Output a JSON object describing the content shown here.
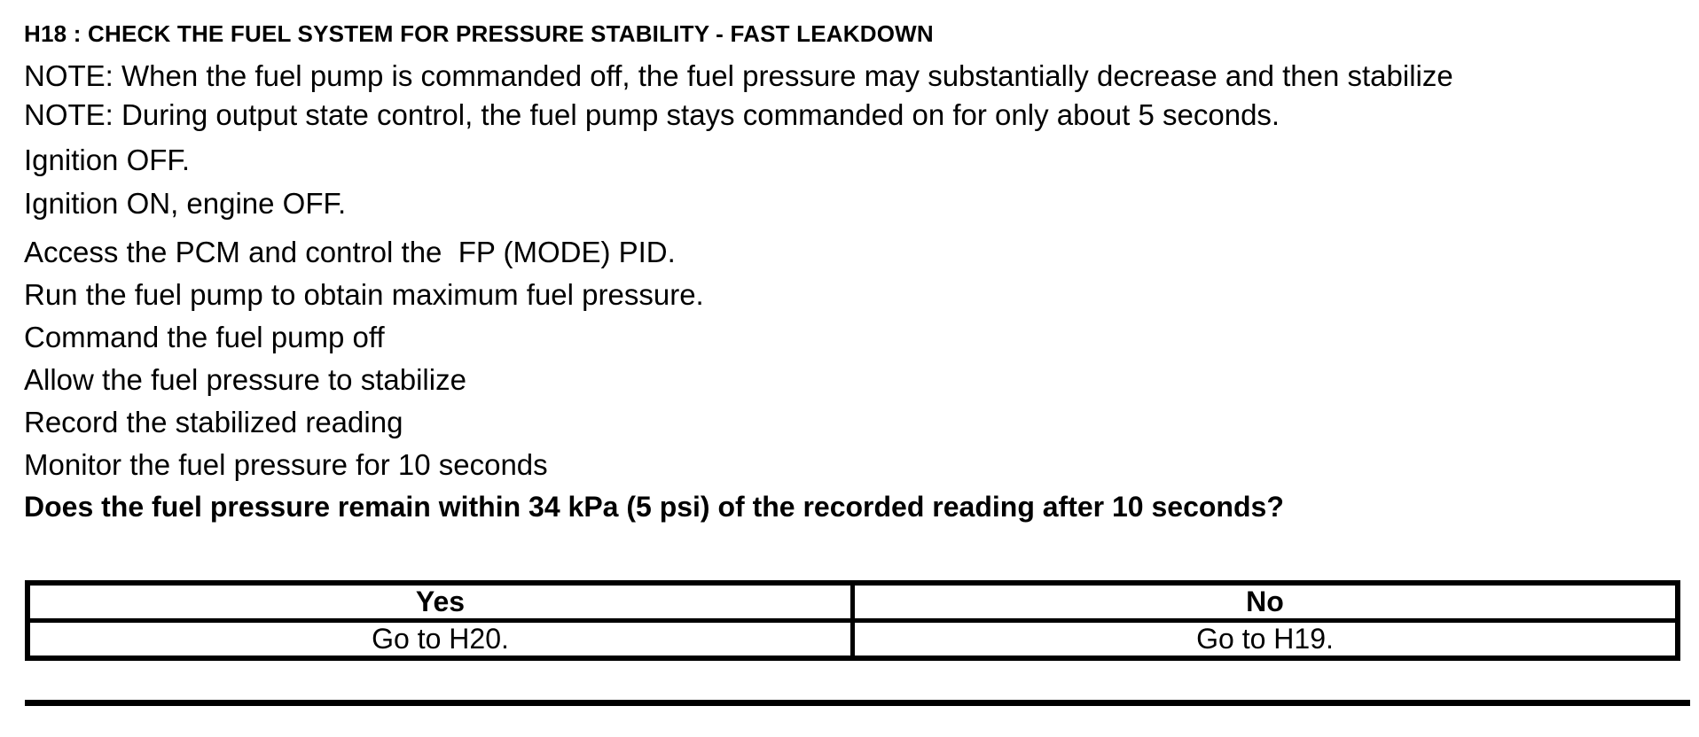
{
  "document": {
    "title": "H18 : CHECK THE FUEL SYSTEM FOR PRESSURE STABILITY - FAST LEAKDOWN",
    "notes": [
      "NOTE: When the fuel pump is commanded off, the fuel pressure may substantially decrease and then stabilize",
      "NOTE: During output state control, the fuel pump stays commanded on for only about 5 seconds."
    ],
    "ignition_lines": [
      "Ignition OFF.",
      "Ignition ON, engine OFF."
    ],
    "procedure_steps": [
      "Access the PCM and control the  FP (MODE) PID.",
      "Run the fuel pump to obtain maximum fuel pressure.",
      "Command the fuel pump off",
      "Allow the fuel pressure to stabilize",
      "Record the stabilized reading",
      "Monitor the fuel pressure for 10 seconds"
    ],
    "question": "Does the fuel pressure remain within 34 kPa (5 psi) of the recorded reading after 10 seconds?",
    "result_table": {
      "yes_header": "Yes",
      "no_header": "No",
      "yes_action": "Go to H20.",
      "no_action": "Go to H19."
    },
    "colors": {
      "text": "#000000",
      "background": "#ffffff",
      "table_border": "#000000"
    }
  }
}
